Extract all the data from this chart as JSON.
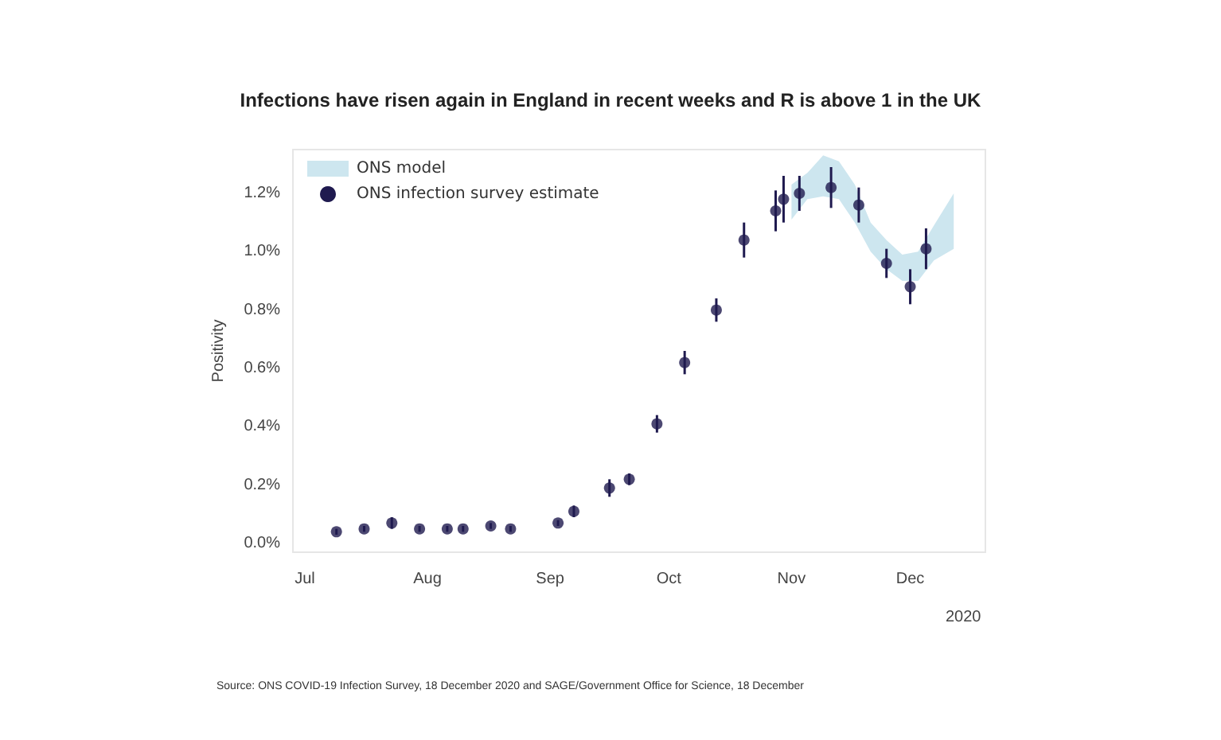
{
  "chart_data": {
    "type": "scatter",
    "title": "Infections have risen again in England in recent weeks and R is above 1 in the UK",
    "ylabel": "Positivity",
    "xlim": [
      "2020-06-28",
      "2020-12-20"
    ],
    "xticks": [
      {
        "value": "2020-07-01",
        "label": "Jul"
      },
      {
        "value": "2020-08-01",
        "label": "Aug"
      },
      {
        "value": "2020-09-01",
        "label": "Sep"
      },
      {
        "value": "2020-10-01",
        "label": "Oct"
      },
      {
        "value": "2020-11-01",
        "label": "Nov"
      },
      {
        "value": "2020-12-01",
        "label": "Dec"
      }
    ],
    "ylim": [
      -0.03,
      1.35
    ],
    "yticks": [
      {
        "value": 0,
        "label": "0.0%"
      },
      {
        "value": 0.2,
        "label": "0.2%"
      },
      {
        "value": 0.4,
        "label": "0.4%"
      },
      {
        "value": 0.6,
        "label": "0.6%"
      },
      {
        "value": 0.8,
        "label": "0.8%"
      },
      {
        "value": 1.0,
        "label": "1.0%"
      },
      {
        "value": 1.2,
        "label": "1.2%"
      }
    ],
    "legend": "top left",
    "grid": false,
    "series": [
      {
        "type": "line",
        "name": "ONS model",
        "color": "#cde6ef",
        "x": [
          "2020-11-01",
          "2020-11-05",
          "2020-11-09",
          "2020-11-13",
          "2020-11-17",
          "2020-11-21",
          "2020-11-25",
          "2020-11-29",
          "2020-12-03",
          "2020-12-07",
          "2020-12-12"
        ],
        "lower": [
          1.11,
          1.18,
          1.19,
          1.18,
          1.1,
          1.0,
          0.94,
          0.9,
          0.9,
          0.97,
          1.01
        ],
        "values": [
          null,
          null,
          null,
          null,
          null,
          null,
          null,
          null,
          null,
          null,
          null
        ],
        "upper": [
          1.23,
          1.27,
          1.33,
          1.31,
          1.23,
          1.1,
          1.04,
          0.99,
          1.0,
          1.09,
          1.2
        ]
      },
      {
        "marker": "circle",
        "name": "ONS infection survey estimate",
        "color": "#1f1a4f",
        "x": [
          "2020-07-09",
          "2020-07-16",
          "2020-07-23",
          "2020-07-30",
          "2020-08-06",
          "2020-08-10",
          "2020-08-17",
          "2020-08-22",
          "2020-09-03",
          "2020-09-07",
          "2020-09-16",
          "2020-09-21",
          "2020-09-28",
          "2020-10-05",
          "2020-10-13",
          "2020-10-20",
          "2020-10-28",
          "2020-10-30",
          "2020-11-03",
          "2020-11-11",
          "2020-11-18",
          "2020-11-25",
          "2020-12-01",
          "2020-12-05"
        ],
        "values": [
          0.04,
          0.05,
          0.07,
          0.05,
          0.05,
          0.05,
          0.06,
          0.05,
          0.07,
          0.11,
          0.19,
          0.22,
          0.41,
          0.62,
          0.8,
          1.04,
          1.14,
          1.18,
          1.2,
          1.22,
          1.16,
          0.96,
          0.88,
          1.01
        ],
        "errors": [
          0.01,
          0.01,
          0.02,
          0.01,
          0.01,
          0.01,
          0.01,
          0.01,
          0.01,
          0.02,
          0.03,
          0.02,
          0.03,
          0.04,
          0.04,
          0.06,
          0.07,
          0.08,
          0.06,
          0.07,
          0.06,
          0.05,
          0.06,
          0.07
        ]
      }
    ],
    "annotations": [
      "2020",
      "Source: ONS COVID-19 Infection Survey, 18 December 2020 and SAGE/Government Office for Science, 18 December"
    ]
  }
}
